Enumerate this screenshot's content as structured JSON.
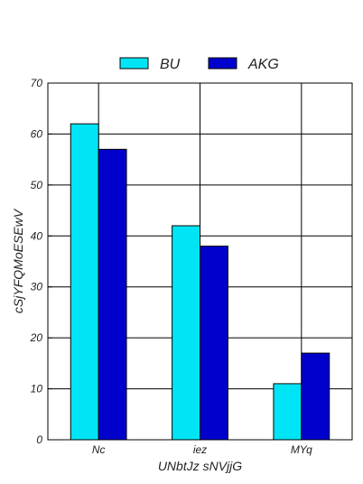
{
  "chart_data": {
    "type": "bar",
    "categories": [
      "Nc",
      "iez",
      "MYq"
    ],
    "series": [
      {
        "name": "BU",
        "values": [
          62,
          42,
          11
        ],
        "color": "#00e5f5"
      },
      {
        "name": "AKG",
        "values": [
          57,
          38,
          17
        ],
        "color": "#0000cd"
      }
    ],
    "xlabel": "UNbtJz sNVjjG",
    "ylabel": "cSjYFQMoESEwV",
    "ylim": [
      0,
      70
    ],
    "yticks": [
      0,
      10,
      20,
      30,
      40,
      50,
      60,
      70
    ],
    "grid": true,
    "legend_position": "top-center"
  }
}
